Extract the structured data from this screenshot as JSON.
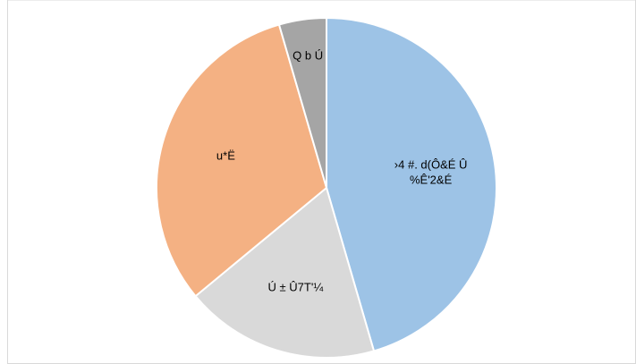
{
  "chart_data": {
    "type": "pie",
    "categories": [
      "›4 #. d(Ô&É Û\n%Ê'2&É",
      "Ú ± Û7T'¼",
      "u*Ë",
      "Q b Ú"
    ],
    "values": [
      45.5,
      18.5,
      31.5,
      4.5
    ],
    "colors": [
      "#9dc3e6",
      "#d9d9d9",
      "#f4b183",
      "#a5a5a5"
    ]
  }
}
